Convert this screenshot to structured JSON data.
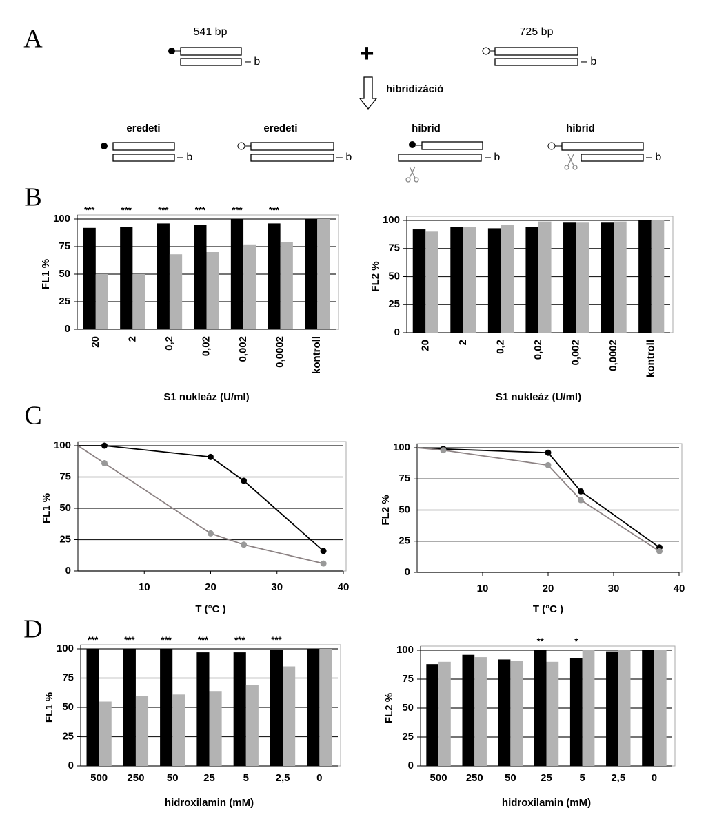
{
  "panel_labels": [
    "A",
    "B",
    "C",
    "D"
  ],
  "diagram": {
    "left_size": "541 bp",
    "right_size": "725 bp",
    "plus": "+",
    "arrow_label": "hibridizáció",
    "strand_label": "b",
    "products": [
      "eredeti",
      "eredeti",
      "hibrid",
      "hibrid"
    ]
  },
  "chart_data": [
    {
      "type": "bar",
      "ylabel": "FL1 %",
      "xlabel": "S1 nukleáz (U/ml)",
      "categories": [
        "20",
        "2",
        "0,2",
        "0,02",
        "0,002",
        "0,0002",
        "kontroll"
      ],
      "series": [
        {
          "color": "#000000",
          "values": [
            92,
            93,
            96,
            95,
            100,
            96,
            100
          ]
        },
        {
          "color": "#b3b3b3",
          "values": [
            50,
            50,
            68,
            70,
            77,
            79,
            100
          ]
        }
      ],
      "significance": [
        "***",
        "***",
        "***",
        "***",
        "***",
        "***",
        null
      ],
      "ylim": [
        0,
        100
      ],
      "yticks": [
        0,
        25,
        50,
        75,
        100
      ],
      "grid": true
    },
    {
      "type": "bar",
      "ylabel": "FL2 %",
      "xlabel": "S1 nukleáz (U/ml)",
      "categories": [
        "20",
        "2",
        "0,2",
        "0,02",
        "0,002",
        "0,0002",
        "kontroll"
      ],
      "series": [
        {
          "color": "#000000",
          "values": [
            92,
            94,
            93,
            94,
            98,
            98,
            100
          ]
        },
        {
          "color": "#b3b3b3",
          "values": [
            90,
            94,
            96,
            99,
            98,
            99,
            100
          ]
        }
      ],
      "ylim": [
        0,
        100
      ],
      "yticks": [
        0,
        25,
        50,
        75,
        100
      ],
      "grid": true
    },
    {
      "type": "line",
      "ylabel": "FL1 %",
      "xlabel": "T (°C )",
      "series": [
        {
          "color": "#000000",
          "x": [
            0,
            4,
            20,
            25,
            37
          ],
          "values": [
            100,
            100,
            91,
            72,
            16
          ]
        },
        {
          "color": "#8c8283",
          "x": [
            0,
            4,
            20,
            25,
            37
          ],
          "values": [
            100,
            86,
            30,
            21,
            6
          ]
        }
      ],
      "xlim": [
        0,
        40
      ],
      "xticks": [
        10,
        20,
        30,
        40
      ],
      "ylim": [
        0,
        100
      ],
      "yticks": [
        0,
        25,
        50,
        75,
        100
      ],
      "grid": true
    },
    {
      "type": "line",
      "ylabel": "FL2 %",
      "xlabel": "T (°C )",
      "series": [
        {
          "color": "#000000",
          "x": [
            0,
            4,
            20,
            25,
            37
          ],
          "values": [
            100,
            99,
            96,
            65,
            20
          ]
        },
        {
          "color": "#8c8283",
          "x": [
            0,
            4,
            20,
            25,
            37
          ],
          "values": [
            100,
            98,
            86,
            58,
            17
          ]
        }
      ],
      "xlim": [
        0,
        40
      ],
      "xticks": [
        10,
        20,
        30,
        40
      ],
      "ylim": [
        0,
        100
      ],
      "yticks": [
        0,
        25,
        50,
        75,
        100
      ],
      "grid": true
    },
    {
      "type": "bar",
      "ylabel": "FL1 %",
      "xlabel": "hidroxilamin (mM)",
      "categories": [
        "500",
        "250",
        "50",
        "25",
        "5",
        "2,5",
        "0"
      ],
      "series": [
        {
          "color": "#000000",
          "values": [
            100,
            100,
            100,
            97,
            97,
            99,
            100
          ]
        },
        {
          "color": "#b3b3b3",
          "values": [
            55,
            60,
            61,
            64,
            69,
            85,
            100
          ]
        }
      ],
      "significance": [
        "***",
        "***",
        "***",
        "***",
        "***",
        "***",
        null
      ],
      "ylim": [
        0,
        100
      ],
      "yticks": [
        0,
        25,
        50,
        75,
        100
      ],
      "grid": true
    },
    {
      "type": "bar",
      "ylabel": "FL2 %",
      "xlabel": "hidroxilamin (mM)",
      "categories": [
        "500",
        "250",
        "50",
        "25",
        "5",
        "2,5",
        "0"
      ],
      "series": [
        {
          "color": "#000000",
          "values": [
            88,
            96,
            92,
            100,
            93,
            99,
            100
          ]
        },
        {
          "color": "#b3b3b3",
          "values": [
            90,
            94,
            91,
            90,
            100,
            100,
            100
          ]
        }
      ],
      "significance": [
        null,
        null,
        null,
        "**",
        "*",
        null,
        null
      ],
      "ylim": [
        0,
        100
      ],
      "yticks": [
        0,
        25,
        50,
        75,
        100
      ],
      "grid": true
    }
  ]
}
